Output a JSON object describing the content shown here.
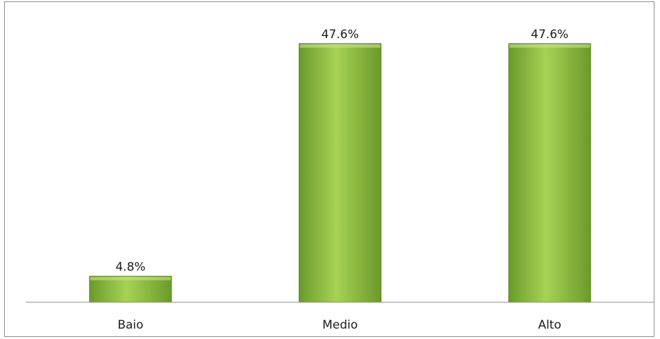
{
  "chart_data": {
    "type": "bar",
    "categories": [
      "Baio",
      "Medio",
      "Alto"
    ],
    "values": [
      4.8,
      47.6,
      47.6
    ],
    "data_labels": [
      "4.8%",
      "47.6%",
      "47.6%"
    ],
    "title": "",
    "xlabel": "",
    "ylabel": "",
    "ylim": [
      0,
      50
    ],
    "grid": false,
    "legend": "none",
    "colors": {
      "bar_light": "#a6d255",
      "bar_mid": "#8fbe3f",
      "bar_dark": "#6a9a2a",
      "bar_edge": "#5c8a23",
      "axis": "#8c8c8c"
    }
  }
}
